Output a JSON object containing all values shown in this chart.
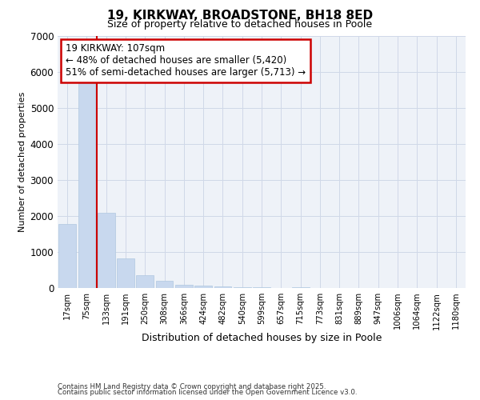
{
  "title_line1": "19, KIRKWAY, BROADSTONE, BH18 8ED",
  "title_line2": "Size of property relative to detached houses in Poole",
  "xlabel": "Distribution of detached houses by size in Poole",
  "ylabel": "Number of detached properties",
  "categories": [
    "17sqm",
    "75sqm",
    "133sqm",
    "191sqm",
    "250sqm",
    "308sqm",
    "366sqm",
    "424sqm",
    "482sqm",
    "540sqm",
    "599sqm",
    "657sqm",
    "715sqm",
    "773sqm",
    "831sqm",
    "889sqm",
    "947sqm",
    "1006sqm",
    "1064sqm",
    "1122sqm",
    "1180sqm"
  ],
  "values": [
    1780,
    5820,
    2080,
    820,
    360,
    210,
    90,
    60,
    35,
    20,
    15,
    10,
    30,
    0,
    0,
    0,
    0,
    0,
    0,
    0,
    0
  ],
  "bar_color": "#c8d8ee",
  "bar_edgecolor": "#b0c8e0",
  "vline_x": 1.5,
  "vline_color": "#cc0000",
  "annotation_text": "19 KIRKWAY: 107sqm\n← 48% of detached houses are smaller (5,420)\n51% of semi-detached houses are larger (5,713) →",
  "annotation_box_facecolor": "white",
  "annotation_box_edgecolor": "#cc0000",
  "ylim": [
    0,
    7000
  ],
  "yticks": [
    0,
    1000,
    2000,
    3000,
    4000,
    5000,
    6000,
    7000
  ],
  "grid_color": "#d0d8e8",
  "background_color": "#eef2f8",
  "footer_line1": "Contains HM Land Registry data © Crown copyright and database right 2025.",
  "footer_line2": "Contains public sector information licensed under the Open Government Licence v3.0."
}
